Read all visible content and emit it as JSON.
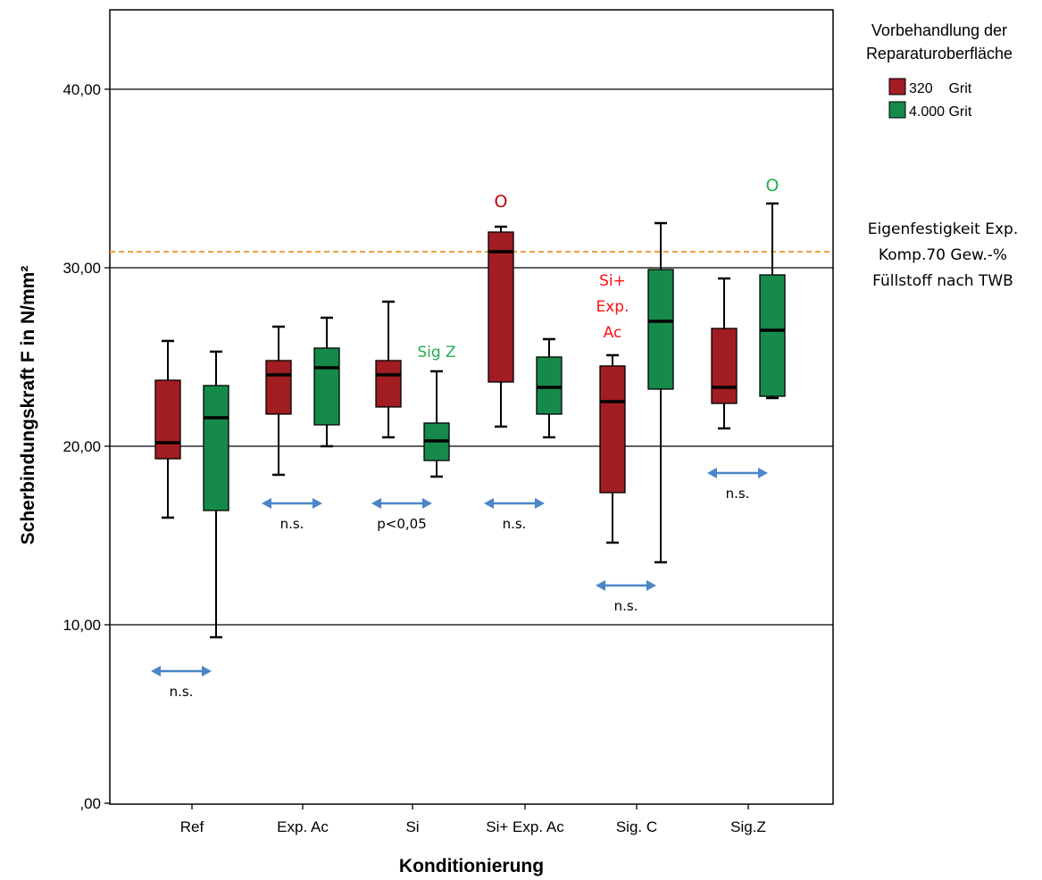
{
  "chart_data": {
    "type": "boxplot",
    "xlabel": "Konditionierung",
    "ylabel": "Scherbindungskraft F in N/mm²",
    "ylim": [
      0,
      44
    ],
    "yticks": [
      {
        "value": 0,
        "label": ",00"
      },
      {
        "value": 10,
        "label": "10,00"
      },
      {
        "value": 20,
        "label": "20,00"
      },
      {
        "value": 30,
        "label": "30,00"
      },
      {
        "value": 40,
        "label": "40,00"
      }
    ],
    "grid": "horizontal at labeled ticks",
    "categories": [
      "Ref",
      "Exp. Ac",
      "Si",
      "Si+ Exp. Ac",
      "Sig. C",
      "Sig.Z"
    ],
    "legend": {
      "title_line1": "Vorbehandlung der",
      "title_line2": "Reparaturoberfläche",
      "placement": "right-top"
    },
    "series": [
      {
        "name": "320    Grit",
        "color": "#a11d21",
        "boxes": [
          {
            "min": 16.0,
            "q1": 19.3,
            "median": 20.2,
            "q3": 23.7,
            "max": 25.9
          },
          {
            "min": 18.4,
            "q1": 21.8,
            "median": 24.0,
            "q3": 24.8,
            "max": 26.7
          },
          {
            "min": 20.5,
            "q1": 22.2,
            "median": 24.0,
            "q3": 24.8,
            "max": 28.1
          },
          {
            "min": 21.1,
            "q1": 23.6,
            "median": 30.9,
            "q3": 32.0,
            "max": 32.3
          },
          {
            "min": 14.6,
            "q1": 17.4,
            "median": 22.5,
            "q3": 24.5,
            "max": 25.1
          },
          {
            "min": 21.0,
            "q1": 22.4,
            "median": 23.3,
            "q3": 26.6,
            "max": 29.4
          }
        ]
      },
      {
        "name": "4.000 Grit",
        "color": "#168a4a",
        "boxes": [
          {
            "min": 9.3,
            "q1": 16.4,
            "median": 21.6,
            "q3": 23.4,
            "max": 25.3
          },
          {
            "min": 20.0,
            "q1": 21.2,
            "median": 24.4,
            "q3": 25.5,
            "max": 27.2
          },
          {
            "min": 18.3,
            "q1": 19.2,
            "median": 20.3,
            "q3": 21.3,
            "max": 24.2
          },
          {
            "min": 20.5,
            "q1": 21.8,
            "median": 23.3,
            "q3": 25.0,
            "max": 26.0
          },
          {
            "min": 13.5,
            "q1": 23.2,
            "median": 27.0,
            "q3": 29.9,
            "max": 32.5
          },
          {
            "min": 22.7,
            "q1": 22.8,
            "median": 26.5,
            "q3": 29.6,
            "max": 33.6
          }
        ]
      }
    ],
    "reference_line": {
      "value": 30.9,
      "color": "#f0a040",
      "label": [
        "Eigenfestigkeit Exp.",
        "Komp.70 Gew.-%",
        "Füllstoff nach TWB"
      ]
    },
    "annotations": [
      {
        "text": "O",
        "color": "#c00000",
        "group": 3,
        "series": 0,
        "value": 33.4
      },
      {
        "text": "O",
        "color": "#22b04e",
        "group": 5,
        "series": 1,
        "value": 34.3
      },
      {
        "text": "Sig Z",
        "color": "#22b04e",
        "group": 2,
        "series": 1,
        "value": 25.0
      },
      {
        "lines": [
          "Si+",
          "Exp.",
          "Ac"
        ],
        "color": "#ff1010",
        "group": 4,
        "series": 0,
        "value": 29.0
      }
    ],
    "comparisons": [
      {
        "group": 0,
        "label": "n.s.",
        "value": 7.4
      },
      {
        "group": 1,
        "label": "n.s.",
        "value": 16.8
      },
      {
        "group": 2,
        "label": "p<0,05",
        "value": 16.8
      },
      {
        "group": 3,
        "label": "n.s.",
        "value": 16.8
      },
      {
        "group": 4,
        "label": "n.s.",
        "value": 12.2
      },
      {
        "group": 5,
        "label": "n.s.",
        "value": 18.5
      }
    ],
    "comparison_arrow_color": "#4a86c8"
  }
}
